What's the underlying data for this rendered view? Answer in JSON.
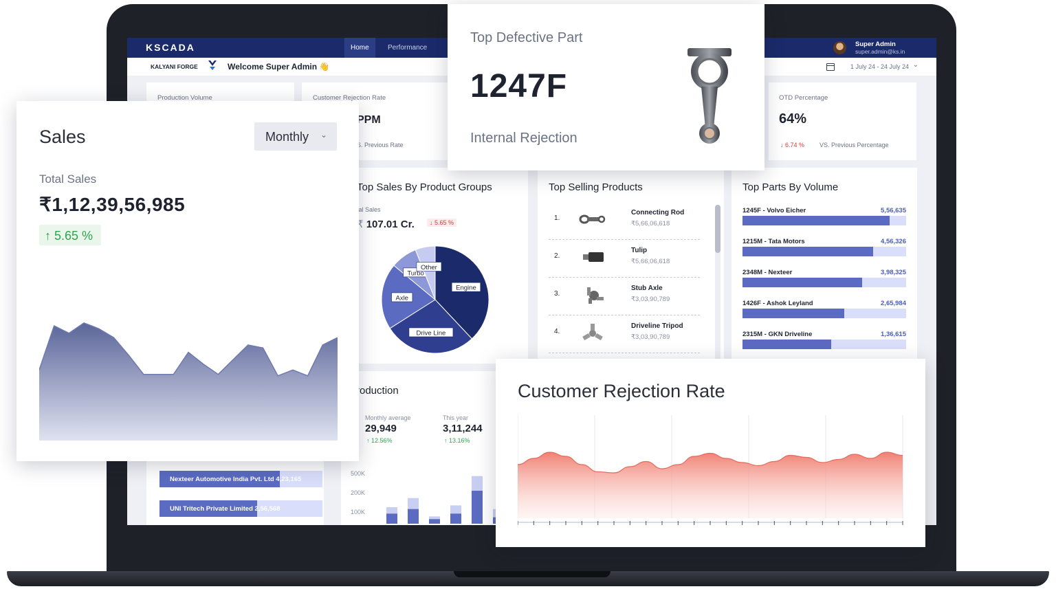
{
  "app": {
    "brand": "KSCADA",
    "nav": [
      {
        "label": "Home",
        "active": true
      },
      {
        "label": "Performance",
        "active": false
      }
    ],
    "user": {
      "name": "Super Admin",
      "email": "super.admin@ks.in"
    }
  },
  "subbar": {
    "company": "KALYANI FORGE",
    "welcome": "Welcome Super Admin 👋",
    "date_range": "1 July 24 - 24 July 24"
  },
  "kpis": {
    "production_volume": {
      "label": "Production Volume"
    },
    "customer_rejection": {
      "label": "Customer Rejection Rate",
      "value_fragment": "PPM",
      "compare": "S. Previous Rate"
    },
    "otd": {
      "label": "OTD Percentage",
      "value": "64%",
      "change": "↓ 6.74 %",
      "compare": "VS. Previous Percentage"
    }
  },
  "product_groups": {
    "title": "Top Sales By Product Groups",
    "total_label": "tal Sales",
    "total_value": "107.01 Cr.",
    "total_prefix": "₹",
    "change": "↓ 5.65 %"
  },
  "chart_data": [
    {
      "type": "pie",
      "title": "Top Sales By Product Groups",
      "labels": [
        "Engine",
        "Drive Line",
        "Axle",
        "Turbo",
        "Other"
      ],
      "values": [
        38,
        28,
        20,
        8,
        6
      ],
      "colors": [
        "#1b2a6b",
        "#2f3e8f",
        "#5a6bc1",
        "#8c98d8",
        "#c5ccf0"
      ]
    },
    {
      "type": "area",
      "title": "Sales",
      "x": [
        0,
        1,
        2,
        3,
        4,
        5,
        6,
        7,
        8,
        9,
        10,
        11,
        12,
        13,
        14,
        15,
        16,
        17,
        18,
        19,
        20
      ],
      "values": [
        48,
        78,
        73,
        80,
        76,
        70,
        58,
        45,
        45,
        45,
        60,
        52,
        45,
        55,
        65,
        63,
        44,
        48,
        44,
        65,
        70
      ],
      "color": "#6f7ab0"
    },
    {
      "type": "area",
      "title": "Customer Rejection Rate",
      "x": [
        0,
        1,
        2,
        3,
        4,
        5,
        6,
        7,
        8,
        9,
        10,
        11,
        12,
        13,
        14,
        15,
        16,
        17,
        18,
        19,
        20,
        21,
        22,
        23,
        24
      ],
      "values": [
        52,
        58,
        64,
        60,
        52,
        45,
        44,
        50,
        55,
        48,
        52,
        60,
        63,
        58,
        54,
        51,
        55,
        61,
        59,
        54,
        57,
        62,
        58,
        64,
        61
      ],
      "color": "#f08a7e"
    },
    {
      "type": "bar",
      "title": "Production",
      "categories": [
        "1",
        "2",
        "3",
        "4",
        "5",
        "6"
      ],
      "series": [
        {
          "values": [
            55,
            80,
            25,
            55,
            180,
            35
          ]
        },
        {
          "values": [
            90,
            140,
            40,
            100,
            260,
            80
          ]
        }
      ],
      "yticks": [
        "500K",
        "200K",
        "100K"
      ]
    }
  ],
  "top_selling": {
    "title": "Top Selling Products",
    "items": [
      {
        "rank": "1.",
        "name": "Connecting Rod",
        "value": "₹5,66,06,618",
        "icon": "connecting-rod-icon"
      },
      {
        "rank": "2.",
        "name": "Tulip",
        "value": "₹5,66,06,618",
        "icon": "tulip-icon"
      },
      {
        "rank": "3.",
        "name": "Stub Axle",
        "value": "₹3,03,90,789",
        "icon": "stub-axle-icon"
      },
      {
        "rank": "4.",
        "name": "Driveline Tripod",
        "value": "₹3,03,90,789",
        "icon": "driveline-tripod-icon"
      }
    ]
  },
  "top_parts": {
    "title": "Top Parts By Volume",
    "items": [
      {
        "name": "1245F - Volvo Eicher",
        "value": "5,56,635",
        "share": 0.9
      },
      {
        "name": "1215M - Tata Motors",
        "value": "4,56,326",
        "share": 0.8
      },
      {
        "name": "2348M - Nexteer",
        "value": "3,98,325",
        "share": 0.73
      },
      {
        "name": "1426F - Ashok Leyland",
        "value": "2,65,984",
        "share": 0.62
      },
      {
        "name": "2315M - GKN Driveline",
        "value": "1,36,615",
        "share": 0.54
      }
    ]
  },
  "customers": {
    "items": [
      {
        "label": "Nexteer Automotive India Pvt. Ltd 4,23,165",
        "share": 0.74
      },
      {
        "label": "UNI Tritech Private Limited 2,56,568",
        "share": 0.6
      }
    ]
  },
  "production": {
    "title": "roduction",
    "monthly_label": "Monthly average",
    "monthly_value": "29,949",
    "monthly_change": "↑ 12.56%",
    "year_label": "This year",
    "year_value": "3,11,244",
    "year_change": "↑ 13.16%"
  },
  "sales_card": {
    "title": "Sales",
    "period": "Monthly",
    "total_label": "Total Sales",
    "total_value": "₹1,12,39,56,985",
    "growth": "↑ 5.65 %"
  },
  "defect_card": {
    "label": "Top Defective Part",
    "value": "1247F",
    "sub": "Internal Rejection"
  },
  "crr_card": {
    "title": "Customer Rejection Rate"
  }
}
